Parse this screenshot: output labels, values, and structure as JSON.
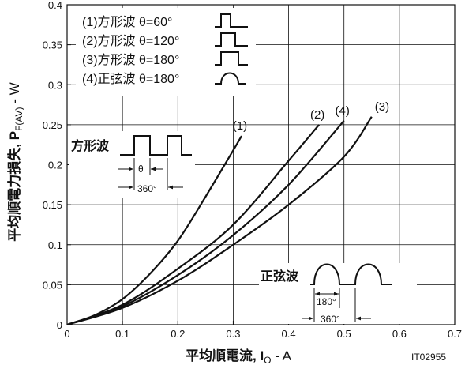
{
  "chart_data": {
    "type": "line",
    "title": "",
    "xlabel": "平均順電流, I",
    "xlabel_sub": "O",
    "xlabel_unit": " - A",
    "ylabel": "平均順電力損失, P",
    "ylabel_sub": "F(AV)",
    "ylabel_unit": " - W",
    "xlim": [
      0,
      0.7
    ],
    "ylim": [
      0,
      0.4
    ],
    "xticks": [
      "0",
      "0.1",
      "0.2",
      "0.3",
      "0.4",
      "0.5",
      "0.6",
      "0.7"
    ],
    "yticks": [
      "0",
      "0.05",
      "0.1",
      "0.15",
      "0.2",
      "0.25",
      "0.3",
      "0.35",
      "0.4"
    ],
    "grid": true,
    "legend_position": "top-left",
    "code": "IT02955",
    "series": [
      {
        "name": "(1)方形波 θ=60°",
        "label": "(1)",
        "symbol": "square-narrow",
        "x": [
          0,
          0.05,
          0.1,
          0.15,
          0.2,
          0.25,
          0.3,
          0.315
        ],
        "y": [
          0,
          0.012,
          0.032,
          0.064,
          0.105,
          0.16,
          0.218,
          0.236
        ]
      },
      {
        "name": "(2)方形波 θ=120°",
        "label": "(2)",
        "symbol": "square-mid",
        "x": [
          0,
          0.1,
          0.2,
          0.3,
          0.4,
          0.455
        ],
        "y": [
          0,
          0.025,
          0.07,
          0.125,
          0.205,
          0.25
        ]
      },
      {
        "name": "(3)方形波 θ=180°",
        "label": "(3)",
        "symbol": "square-wide",
        "x": [
          0,
          0.1,
          0.2,
          0.3,
          0.4,
          0.5,
          0.55
        ],
        "y": [
          0,
          0.021,
          0.055,
          0.1,
          0.15,
          0.21,
          0.26
        ]
      },
      {
        "name": "(4)正弦波 θ=180°",
        "label": "(4)",
        "symbol": "sine",
        "x": [
          0,
          0.1,
          0.2,
          0.3,
          0.4,
          0.5
        ],
        "y": [
          0,
          0.023,
          0.062,
          0.112,
          0.175,
          0.255
        ]
      }
    ],
    "annotations": {
      "square_title": "方形波",
      "square_theta": "θ",
      "square_period": "360°",
      "sine_title": "正弦波",
      "sine_half": "180°",
      "sine_period": "360°"
    }
  }
}
